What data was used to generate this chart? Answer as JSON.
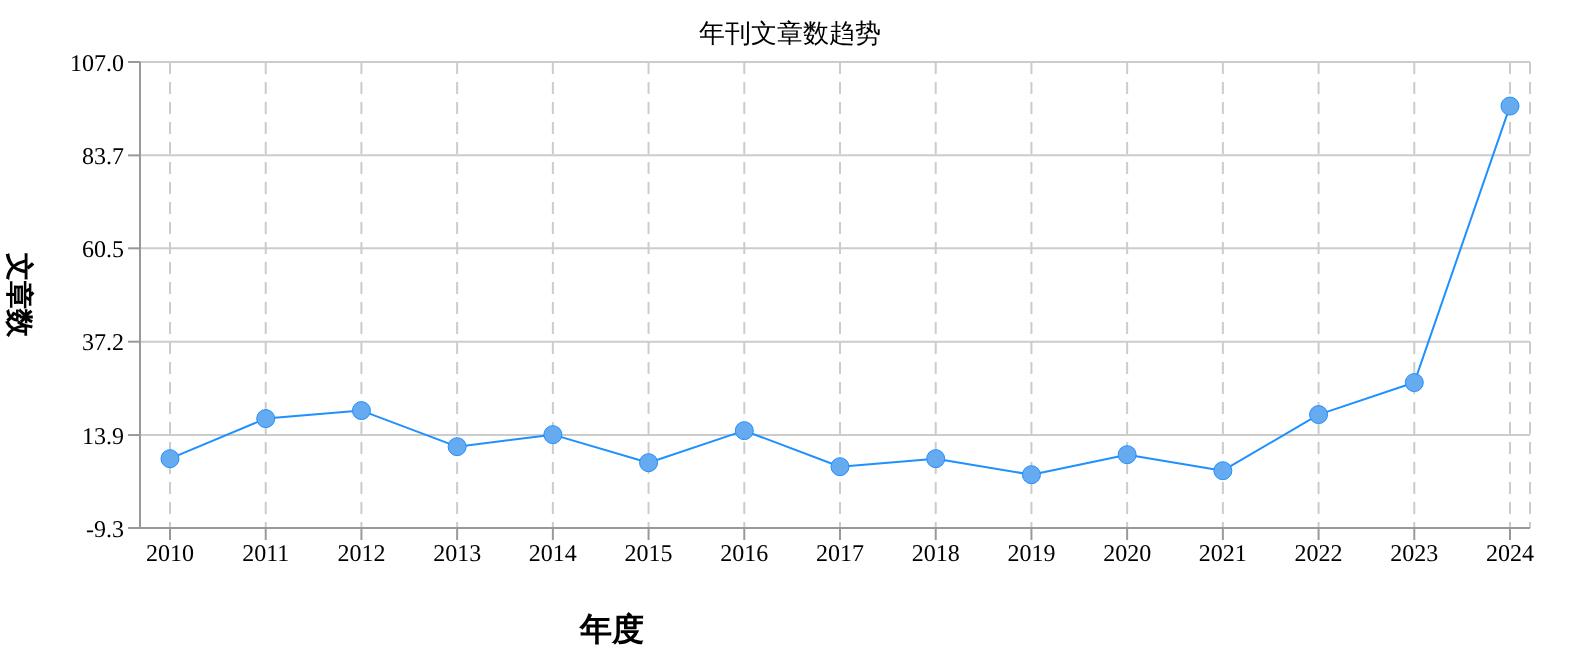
{
  "chart_data": {
    "type": "line",
    "title": "年刊文章数趋势",
    "xlabel": "年度",
    "ylabel": "文章数",
    "categories": [
      "2010",
      "2011",
      "2012",
      "2013",
      "2014",
      "2015",
      "2016",
      "2017",
      "2018",
      "2019",
      "2020",
      "2021",
      "2022",
      "2023",
      "2024"
    ],
    "series": [
      {
        "color": "#1e90ff",
        "values": [
          8,
          18,
          20,
          11,
          14,
          7,
          15,
          6,
          8,
          4,
          9,
          5,
          19,
          27,
          96
        ]
      }
    ],
    "ylim": [
      -9.3,
      107
    ],
    "yticks": [
      -9.3,
      13.9,
      37.2,
      60.5,
      83.7,
      {
        "value": 107,
        "label": "107.0"
      }
    ],
    "grid": true,
    "legend": false,
    "marker": "circle",
    "line_style": "solid"
  }
}
